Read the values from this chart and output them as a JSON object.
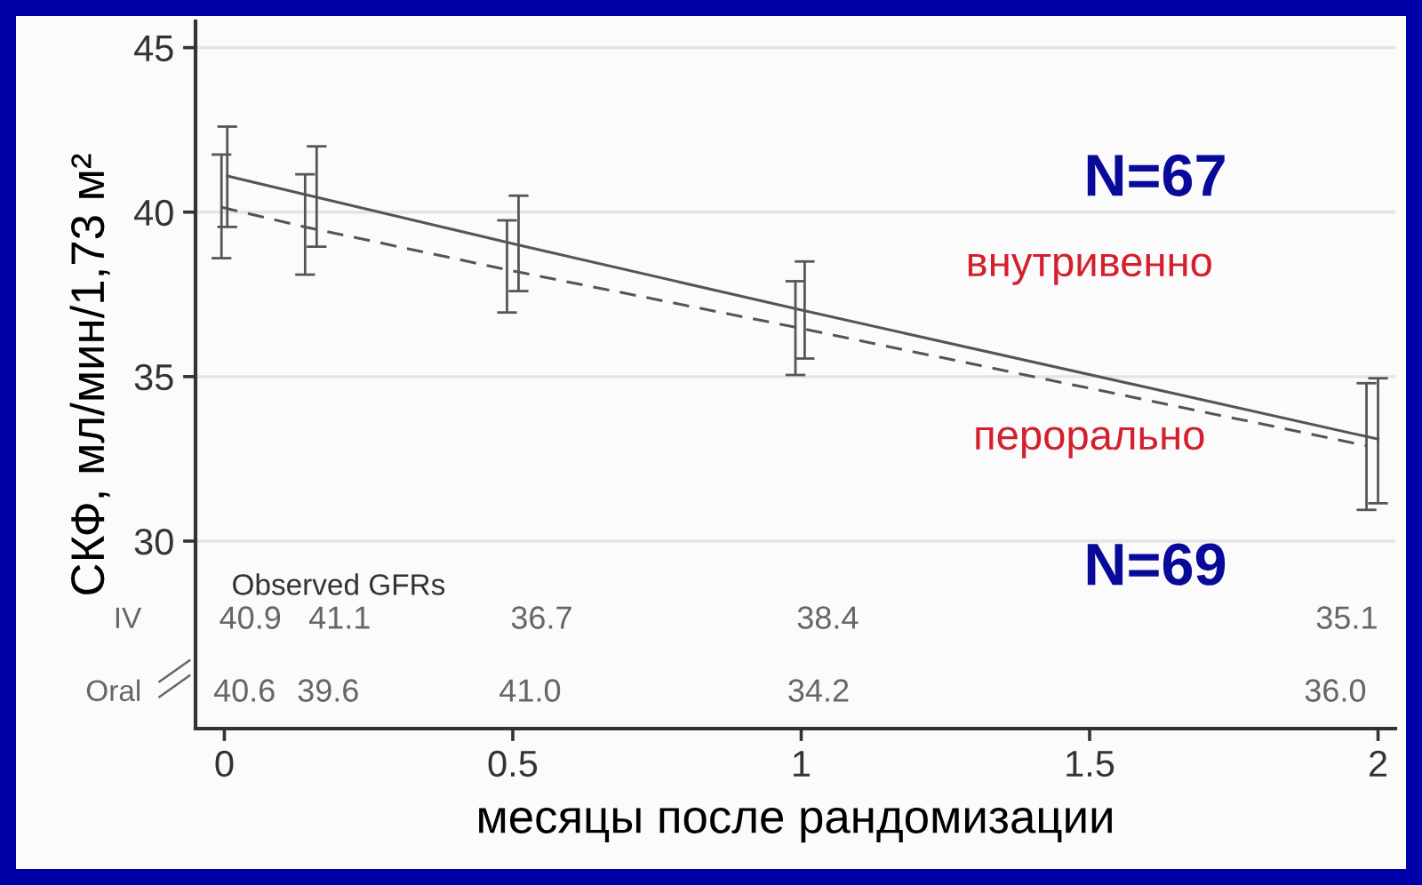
{
  "chart_data": {
    "type": "line",
    "xlabel": "месяцы после рандомизации",
    "ylabel": "СКФ, мл/мин/1,73 м²",
    "xlim": [
      -0.05,
      2.03
    ],
    "ylim": [
      24.3,
      45.8
    ],
    "xticks": [
      0,
      0.5,
      1,
      1.5,
      2
    ],
    "yticks": [
      30,
      35,
      40,
      45
    ],
    "grid": "y",
    "marker": "none",
    "series": [
      {
        "color": "#555555",
        "line_style": "solid",
        "x": [
          0.005,
          0.16,
          0.51,
          1.006,
          2.0
        ],
        "values": [
          41.1,
          40.45,
          39.0,
          37.0,
          33.1
        ],
        "errors": [
          [
            39.55,
            42.6
          ],
          [
            38.95,
            42.0
          ],
          [
            37.6,
            40.5
          ],
          [
            35.55,
            38.5
          ],
          [
            31.15,
            34.95
          ]
        ]
      },
      {
        "color": "#555555",
        "line_style": "dashed",
        "x": [
          -0.005,
          0.14,
          0.49,
          0.99,
          1.98
        ],
        "values": [
          40.15,
          39.55,
          38.25,
          36.5,
          32.9
        ],
        "errors": [
          [
            38.6,
            41.75
          ],
          [
            38.1,
            41.15
          ],
          [
            36.95,
            39.75
          ],
          [
            35.05,
            37.9
          ],
          [
            30.95,
            34.8
          ]
        ]
      }
    ],
    "annotations": [
      "N=67",
      "внутривенно",
      "перорально",
      "N=69",
      "Observed GFRs",
      "IV",
      "Oral",
      "40.9",
      "41.1",
      "36.7",
      "38.4",
      "35.1",
      "40.6",
      "39.6",
      "41.0",
      "34.2",
      "36.0"
    ]
  }
}
